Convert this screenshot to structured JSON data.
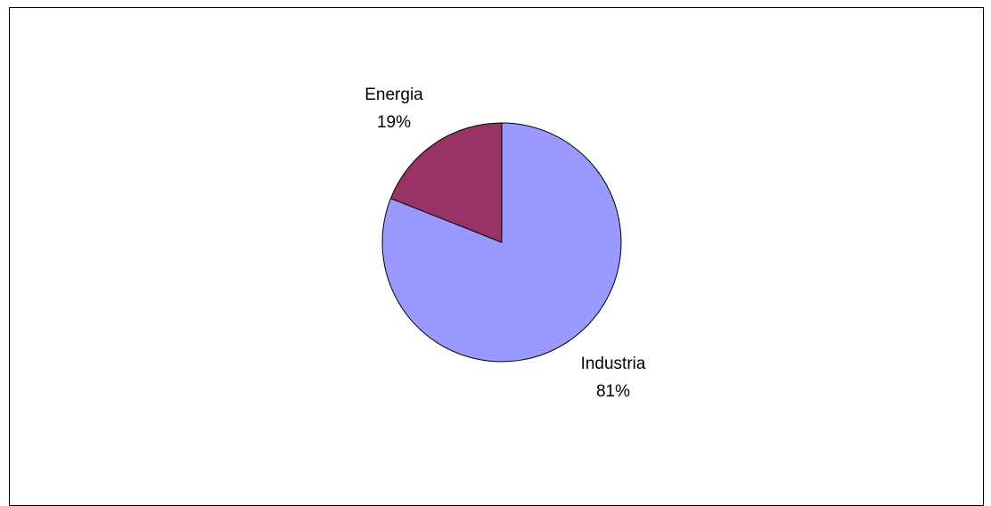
{
  "chart_data": {
    "type": "pie",
    "categories": [
      "Industria",
      "Energia"
    ],
    "values": [
      81,
      19
    ],
    "labels": [
      "81%",
      "19%"
    ],
    "colors": [
      "#9999ff",
      "#993366"
    ],
    "start": "12 o'clock",
    "direction": "clockwise"
  }
}
